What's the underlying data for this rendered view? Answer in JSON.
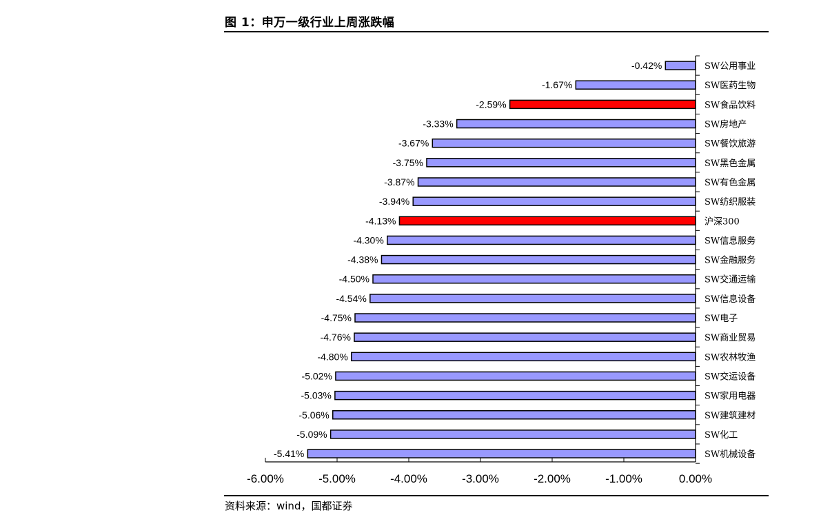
{
  "figure": {
    "title": "图 1：申万一级行业上周涨跌幅",
    "source": "资料来源：wind，国都证券"
  },
  "colors": {
    "bar_default": "#9999ff",
    "bar_highlight": "#ff0000",
    "bar_stroke": "#000000"
  },
  "chart_data": {
    "type": "bar",
    "orientation": "horizontal",
    "categories": [
      "SW公用事业",
      "SW医药生物",
      "SW食品饮料",
      "SW房地产",
      "SW餐饮旅游",
      "SW黑色金属",
      "SW有色金属",
      "SW纺织服装",
      "沪深300",
      "SW信息服务",
      "SW金融服务",
      "SW交通运输",
      "SW信息设备",
      "SW电子",
      "SW商业贸易",
      "SW农林牧渔",
      "SW交运设备",
      "SW家用电器",
      "SW建筑建材",
      "SW化工",
      "SW机械设备"
    ],
    "values": [
      -0.42,
      -1.67,
      -2.59,
      -3.33,
      -3.67,
      -3.75,
      -3.87,
      -3.94,
      -4.13,
      -4.3,
      -4.38,
      -4.5,
      -4.54,
      -4.75,
      -4.76,
      -4.8,
      -5.02,
      -5.03,
      -5.06,
      -5.09,
      -5.41
    ],
    "value_labels": [
      "-0.42%",
      "-1.67%",
      "-2.59%",
      "-3.33%",
      "-3.67%",
      "-3.75%",
      "-3.87%",
      "-3.94%",
      "-4.13%",
      "-4.30%",
      "-4.38%",
      "-4.50%",
      "-4.54%",
      "-4.75%",
      "-4.76%",
      "-4.80%",
      "-5.02%",
      "-5.03%",
      "-5.06%",
      "-5.09%",
      "-5.41%"
    ],
    "highlighted": [
      "SW食品饮料",
      "沪深300"
    ],
    "xlim": [
      -6.0,
      0.0
    ],
    "xticks": [
      -6,
      -5,
      -4,
      -3,
      -2,
      -1,
      0
    ],
    "xtick_labels": [
      "-6.00%",
      "-5.00%",
      "-4.00%",
      "-3.00%",
      "-2.00%",
      "-1.00%",
      "0.00%"
    ],
    "category_axis_side": "right",
    "grid": false,
    "legend": "none"
  }
}
